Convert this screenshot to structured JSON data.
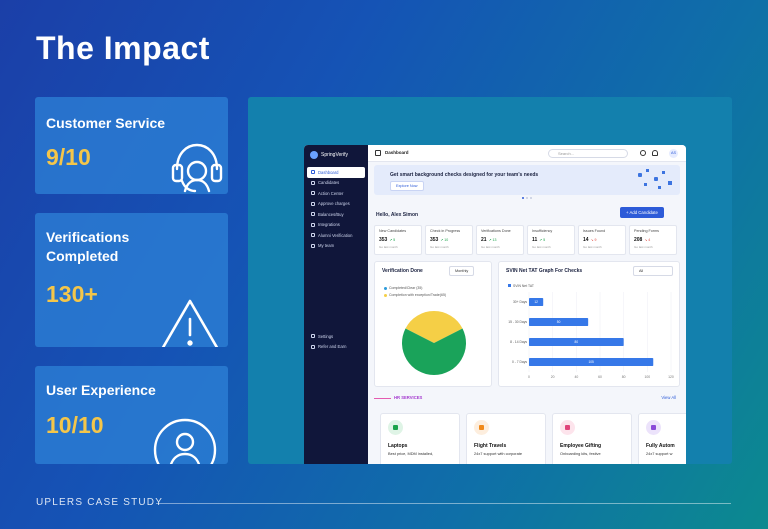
{
  "page": {
    "title": "The Impact",
    "footer": "UPLERS CASE STUDY"
  },
  "metrics": [
    {
      "label": "Customer Service",
      "value": "9/10"
    },
    {
      "label": "Verifications Completed",
      "value": "130+"
    },
    {
      "label": "User Experience",
      "value": "10/10"
    }
  ],
  "app": {
    "brand": "SpringVerify",
    "breadcrumb": "Dashboard",
    "search_placeholder": "Search...",
    "avatar_initials": "AS",
    "sidebar_items": [
      "Dashboard",
      "Candidates",
      "Action Center",
      "Approve charges",
      "Balances/Buy",
      "Integrations",
      "Alumni Verification",
      "My team"
    ],
    "sidebar_bottom": [
      "Settings",
      "Refer and Earn"
    ],
    "banner": {
      "text": "Get smart background checks designed for your team's needs",
      "button": "Explore Now"
    },
    "greeting": "Hello, Alex Simon",
    "add_candidate": "+ Add Candidate",
    "stats": [
      {
        "label": "New Candidates",
        "value": "353",
        "delta": "5",
        "dir": "up",
        "caption": "Go last month"
      },
      {
        "label": "Check in Progress",
        "value": "353",
        "delta": "10",
        "dir": "up",
        "caption": "Go last month"
      },
      {
        "label": "Verifications Done",
        "value": "21",
        "delta": "13",
        "dir": "up",
        "caption": "Go last month"
      },
      {
        "label": "Insufficiency",
        "value": "11",
        "delta": "5",
        "dir": "up",
        "caption": "Go last month"
      },
      {
        "label": "Issues Found",
        "value": "14",
        "delta": "9",
        "dir": "dn",
        "caption": "Go last month"
      },
      {
        "label": "Pending Forms",
        "value": "208",
        "delta": "4",
        "dir": "dn",
        "caption": "Go last month"
      }
    ],
    "verification_done": {
      "title": "Verification Done",
      "period": "Monthly"
    },
    "tat_graph": {
      "title": "SVIN Net TAT Graph For Checks",
      "filter": "All"
    },
    "hr_services": {
      "label": "HR SERVICES",
      "view_all": "View All"
    },
    "services": [
      {
        "title": "Laptops",
        "desc": "Best price, MDM installed,",
        "color": "#dff4e6",
        "icon_color": "#1aa34a"
      },
      {
        "title": "Flight Travels",
        "desc": "24x7 support with corporate",
        "color": "#fdeede",
        "icon_color": "#f08a1c"
      },
      {
        "title": "Employee Gifting",
        "desc": "Onboarding kits, festive",
        "color": "#fde4ec",
        "icon_color": "#e0447a"
      },
      {
        "title": "Fully Autom",
        "desc": "24x7 support w",
        "color": "#ece3fb",
        "icon_color": "#8a4ad8"
      }
    ]
  },
  "chart_data": [
    {
      "type": "pie",
      "title": "Verification Done",
      "categories": [
        "Completed/Clear (35)",
        "Completion with exception/Trade(65)"
      ],
      "values": [
        35,
        65
      ],
      "colors": [
        "#f5cf46",
        "#1aa35a"
      ]
    },
    {
      "type": "bar",
      "orientation": "horizontal",
      "title": "SVIN Net TAT Graph For Checks",
      "legend": "SVIN Net TAT",
      "categories": [
        "0 - 7 Days",
        "8 - 14 Days",
        "15 - 30 Days",
        "30+ Days"
      ],
      "values": [
        105,
        80,
        50,
        12
      ],
      "value_labels": [
        "105",
        "80",
        "50",
        "12"
      ],
      "xticks": [
        "0",
        "20",
        "40",
        "60",
        "80",
        "100",
        "120"
      ],
      "xlim": [
        0,
        120
      ],
      "color": "#3678e8"
    }
  ]
}
